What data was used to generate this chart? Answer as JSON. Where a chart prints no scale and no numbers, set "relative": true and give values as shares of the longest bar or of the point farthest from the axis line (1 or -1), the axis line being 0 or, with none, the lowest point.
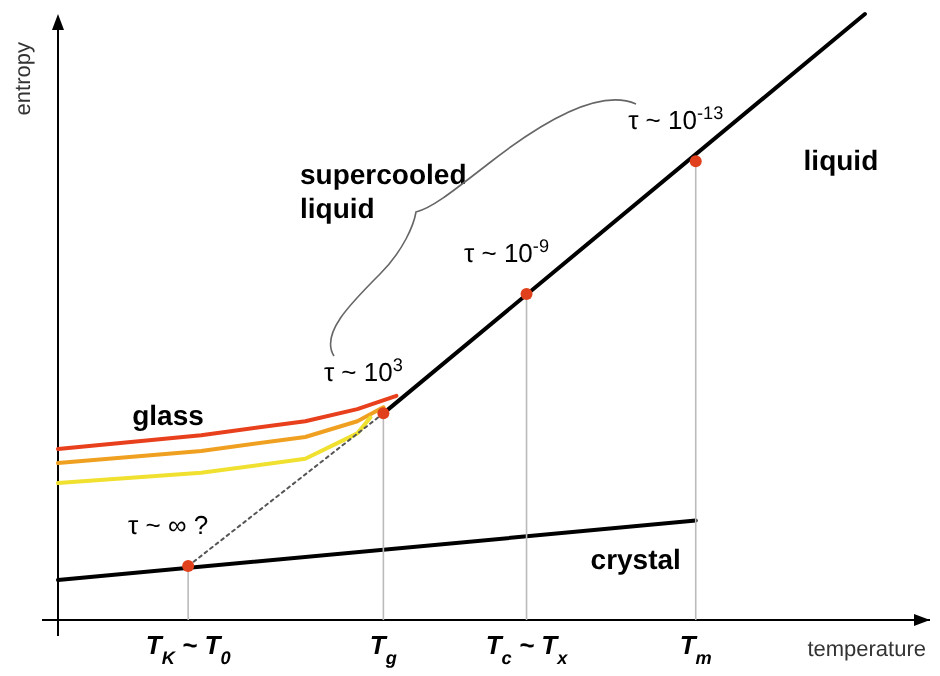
{
  "chart_data": {
    "type": "line",
    "relative": true,
    "xlabel": "temperature",
    "ylabel": "entropy",
    "categories": [
      null,
      null,
      null,
      null,
      null,
      null,
      null,
      null,
      null,
      null,
      "T$_{K}$ ~ T$_{0}$",
      null,
      null,
      null,
      null,
      null,
      null,
      null,
      null,
      null,
      null,
      null,
      null,
      null,
      null,
      "T$_{g}$",
      null,
      null,
      null,
      null,
      null,
      null,
      null,
      null,
      null,
      null,
      "T$_{c}$ ~ T$_{x}$",
      null,
      null,
      null,
      null,
      null,
      null,
      null,
      null,
      null,
      null,
      null,
      null,
      "T$_{m}$",
      null,
      null,
      null,
      null,
      null,
      null,
      null,
      null,
      null,
      null,
      null,
      null,
      null,
      null,
      null,
      null,
      null,
      null
    ],
    "series": [
      {
        "name": "liquid",
        "color": "#000000",
        "marker": "none",
        "line_style": "solid",
        "values": [
          null,
          null,
          null,
          null,
          null,
          null,
          null,
          null,
          null,
          null,
          null,
          null,
          null,
          null,
          null,
          null,
          null,
          null,
          null,
          null,
          null,
          null,
          null,
          null,
          null,
          0.341,
          null,
          null,
          null,
          null,
          null,
          null,
          null,
          null,
          null,
          null,
          null,
          null,
          null,
          null,
          null,
          null,
          null,
          null,
          null,
          null,
          null,
          null,
          null,
          null,
          null,
          null,
          null,
          null,
          null,
          null,
          null,
          null,
          null,
          null,
          null,
          null,
          1,
          null,
          null,
          null,
          null,
          null
        ]
      },
      {
        "name": "crystal",
        "color": "#000000",
        "marker": "none",
        "line_style": "solid",
        "values": [
          0.066,
          null,
          null,
          null,
          null,
          null,
          null,
          null,
          null,
          null,
          null,
          null,
          null,
          null,
          null,
          null,
          null,
          null,
          null,
          null,
          null,
          null,
          null,
          null,
          null,
          null,
          null,
          null,
          null,
          null,
          null,
          null,
          null,
          null,
          null,
          null,
          null,
          null,
          null,
          null,
          null,
          null,
          null,
          null,
          null,
          null,
          null,
          null,
          null,
          0.164,
          null,
          null,
          null,
          null,
          null,
          null,
          null,
          null,
          null,
          null,
          null,
          null,
          null,
          null,
          null,
          null,
          null,
          null
        ]
      },
      {
        "name": "glass",
        "color": "#e8401c",
        "marker": "none",
        "line_style": "solid",
        "values": [
          0.282,
          null,
          null,
          null,
          null,
          null,
          null,
          null,
          null,
          null,
          null,
          0.305,
          null,
          null,
          null,
          null,
          null,
          null,
          null,
          0.328,
          null,
          null,
          null,
          0.348,
          null,
          null,
          0.37,
          null,
          null,
          null,
          null,
          null,
          null,
          null,
          null,
          null,
          null,
          null,
          null,
          null,
          null,
          null,
          null,
          null,
          null,
          null,
          null,
          null,
          null,
          null,
          null,
          null,
          null,
          null,
          null,
          null,
          null,
          null,
          null,
          null,
          null,
          null,
          null,
          null,
          null,
          null,
          null,
          null
        ]
      },
      {
        "color": "#f0a020",
        "marker": "none",
        "line_style": "solid",
        "values": [
          0.259,
          null,
          null,
          null,
          null,
          null,
          null,
          null,
          null,
          null,
          null,
          0.279,
          null,
          null,
          null,
          null,
          null,
          null,
          null,
          0.302,
          null,
          null,
          null,
          0.328,
          null,
          0.351,
          null,
          null,
          null,
          null,
          null,
          null,
          null,
          null,
          null,
          null,
          null,
          null,
          null,
          null,
          null,
          null,
          null,
          null,
          null,
          null,
          null,
          null,
          null,
          null,
          null,
          null,
          null,
          null,
          null,
          null,
          null,
          null,
          null,
          null,
          null,
          null,
          null,
          null,
          null,
          null,
          null,
          null
        ]
      },
      {
        "color": "#f0e030",
        "marker": "none",
        "line_style": "solid",
        "values": [
          0.226,
          null,
          null,
          null,
          null,
          null,
          null,
          null,
          null,
          null,
          null,
          0.243,
          null,
          null,
          null,
          null,
          null,
          null,
          null,
          0.266,
          null,
          null,
          null,
          0.308,
          0.334,
          null,
          null,
          null,
          null,
          null,
          null,
          null,
          null,
          null,
          null,
          null,
          null,
          null,
          null,
          null,
          null,
          null,
          null,
          null,
          null,
          null,
          null,
          null,
          null,
          null,
          null,
          null,
          null,
          null,
          null,
          null,
          null,
          null,
          null,
          null,
          null,
          null,
          null,
          null,
          null,
          null,
          null,
          null
        ]
      },
      {
        "color": "#555555",
        "marker": "none",
        "line_style": "dotted",
        "values": [
          null,
          null,
          null,
          null,
          null,
          null,
          null,
          null,
          null,
          null,
          0.089,
          null,
          null,
          null,
          null,
          null,
          null,
          null,
          null,
          null,
          null,
          null,
          null,
          null,
          null,
          0.341,
          null,
          null,
          null,
          null,
          null,
          null,
          null,
          null,
          null,
          null,
          null,
          null,
          null,
          null,
          null,
          null,
          null,
          null,
          null,
          null,
          null,
          null,
          null,
          null,
          null,
          null,
          null,
          null,
          null,
          null,
          null,
          null,
          null,
          null,
          null,
          null,
          null,
          null,
          null,
          null,
          null,
          null
        ]
      },
      {
        "type": "lollipop",
        "color": "#e0401c",
        "marker": "circle",
        "values": [
          null,
          null,
          null,
          null,
          null,
          null,
          null,
          null,
          null,
          null,
          0.089,
          null,
          null,
          null,
          null,
          null,
          null,
          null,
          null,
          null,
          null,
          null,
          null,
          null,
          null,
          0.341,
          null,
          null,
          null,
          null,
          null,
          null,
          null,
          null,
          null,
          null,
          0.538,
          null,
          null,
          null,
          null,
          null,
          null,
          null,
          null,
          null,
          null,
          null,
          null,
          0.757,
          null,
          null,
          null,
          null,
          null,
          null,
          null,
          null,
          null,
          null,
          null,
          null,
          null,
          null,
          null,
          null,
          null,
          null
        ]
      }
    ],
    "annotations": [
      {
        "text": "τ ~ ∞ ?",
        "x": "T$_{K}$ ~ T$_{0}$",
        "y": 0.089
      },
      {
        "text": "τ ~ 10$^{3}$",
        "x": "T$_{g}$",
        "y": 0.341
      },
      {
        "text": "τ ~ 10$^{-9}$",
        "x": "T$_{c}$ ~ T$_{x}$",
        "y": 0.538
      },
      {
        "text": "τ ~ 10$^{-13}$",
        "x": "T$_{m}$",
        "y": 0.757
      },
      "supercooled liquid"
    ]
  }
}
